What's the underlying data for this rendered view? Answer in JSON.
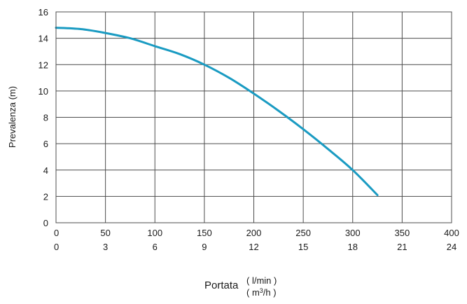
{
  "chart_data": {
    "type": "line",
    "title": "",
    "ylabel": "Prevalenza (m)",
    "xlabel": "Portata",
    "x_units_primary": "( l/min )",
    "x_units_secondary_prefix": "( m",
    "x_units_secondary_sup": "3",
    "x_units_secondary_suffix": "/h )",
    "xlim": [
      0,
      400
    ],
    "ylim": [
      0,
      16
    ],
    "x_ticks": [
      "0",
      "50",
      "100",
      "150",
      "200",
      "250",
      "300",
      "350",
      "400"
    ],
    "x_ticks_secondary": [
      "0",
      "3",
      "6",
      "9",
      "12",
      "15",
      "18",
      "21",
      "24"
    ],
    "y_ticks": [
      "0",
      "2",
      "4",
      "6",
      "8",
      "10",
      "12",
      "14",
      "16"
    ],
    "grid": true,
    "legend": "none",
    "series": [
      {
        "color": "#1a9bc2",
        "x": [
          0,
          25,
          50,
          75,
          100,
          125,
          150,
          175,
          200,
          225,
          250,
          275,
          300,
          325
        ],
        "y": [
          14.8,
          14.7,
          14.4,
          14.0,
          13.4,
          12.8,
          12.0,
          11.0,
          9.8,
          8.5,
          7.1,
          5.6,
          4.0,
          2.1
        ]
      }
    ]
  }
}
